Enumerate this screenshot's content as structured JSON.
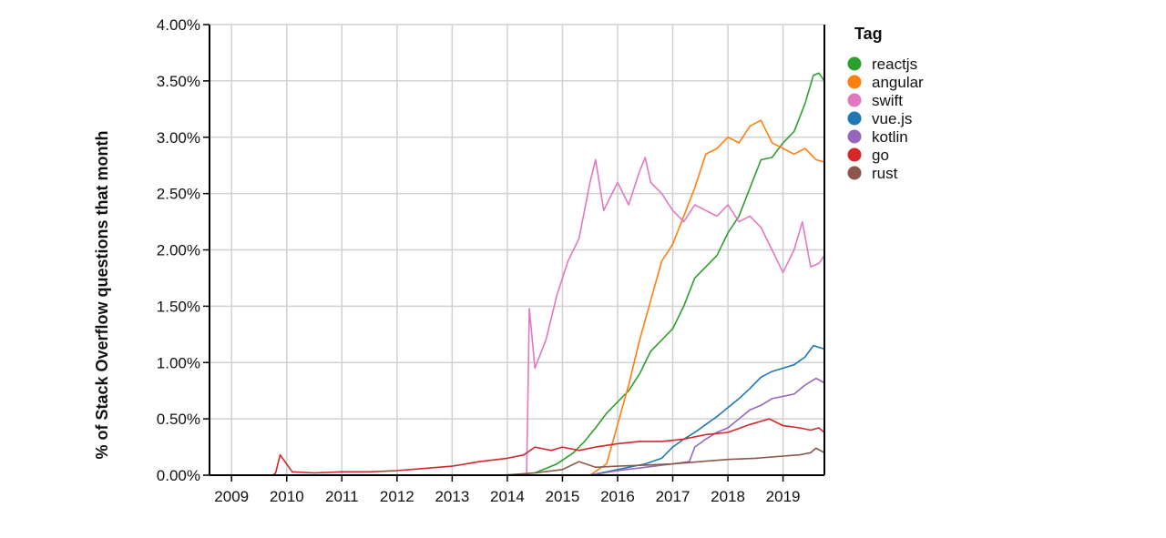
{
  "chart_data": {
    "type": "line",
    "ylabel": "% of Stack Overflow questions that month",
    "legend_title": "Tag",
    "legend_position": "top-right",
    "grid": true,
    "xlim": [
      2008.6,
      2019.75
    ],
    "ylim": [
      0,
      4.0
    ],
    "x_ticks": [
      2009,
      2010,
      2011,
      2012,
      2013,
      2014,
      2015,
      2016,
      2017,
      2018,
      2019
    ],
    "x_tick_labels": [
      "2009",
      "2010",
      "2011",
      "2012",
      "2013",
      "2014",
      "2015",
      "2016",
      "2017",
      "2018",
      "2019"
    ],
    "y_ticks": [
      0,
      0.5,
      1.0,
      1.5,
      2.0,
      2.5,
      3.0,
      3.5,
      4.0
    ],
    "y_tick_labels": [
      "0.00%",
      "0.50%",
      "1.00%",
      "1.50%",
      "2.00%",
      "2.50%",
      "3.00%",
      "3.50%",
      "4.00%"
    ],
    "series": [
      {
        "name": "reactjs",
        "color": "#2ca02c",
        "x": [
          2008.6,
          2013.9,
          2014.5,
          2014.9,
          2015.2,
          2015.4,
          2015.6,
          2015.8,
          2016.0,
          2016.2,
          2016.4,
          2016.6,
          2016.8,
          2017.0,
          2017.2,
          2017.4,
          2017.6,
          2017.8,
          2018.0,
          2018.2,
          2018.4,
          2018.6,
          2018.8,
          2019.0,
          2019.2,
          2019.4,
          2019.55,
          2019.65,
          2019.75
        ],
        "y": [
          0,
          0,
          0.02,
          0.1,
          0.2,
          0.3,
          0.42,
          0.55,
          0.65,
          0.75,
          0.9,
          1.1,
          1.2,
          1.3,
          1.5,
          1.75,
          1.85,
          1.95,
          2.15,
          2.3,
          2.55,
          2.8,
          2.82,
          2.95,
          3.05,
          3.3,
          3.55,
          3.57,
          3.5
        ]
      },
      {
        "name": "angular",
        "color": "#ff7f0e",
        "x": [
          2008.6,
          2015.5,
          2015.8,
          2016.0,
          2016.2,
          2016.4,
          2016.6,
          2016.8,
          2017.0,
          2017.2,
          2017.4,
          2017.6,
          2017.8,
          2018.0,
          2018.2,
          2018.4,
          2018.6,
          2018.8,
          2019.0,
          2019.2,
          2019.4,
          2019.6,
          2019.75
        ],
        "y": [
          0,
          0,
          0.1,
          0.45,
          0.8,
          1.2,
          1.55,
          1.9,
          2.05,
          2.3,
          2.55,
          2.85,
          2.9,
          3.0,
          2.95,
          3.1,
          3.15,
          2.95,
          2.9,
          2.85,
          2.9,
          2.8,
          2.78
        ]
      },
      {
        "name": "swift",
        "color": "#e377c2",
        "x": [
          2008.6,
          2014.35,
          2014.4,
          2014.5,
          2014.7,
          2014.9,
          2015.1,
          2015.3,
          2015.5,
          2015.6,
          2015.75,
          2015.9,
          2016.0,
          2016.2,
          2016.4,
          2016.5,
          2016.6,
          2016.8,
          2017.0,
          2017.2,
          2017.4,
          2017.6,
          2017.8,
          2018.0,
          2018.2,
          2018.4,
          2018.6,
          2018.8,
          2019.0,
          2019.2,
          2019.35,
          2019.5,
          2019.65,
          2019.75
        ],
        "y": [
          0,
          0,
          1.48,
          0.95,
          1.2,
          1.6,
          1.9,
          2.1,
          2.6,
          2.8,
          2.35,
          2.5,
          2.6,
          2.4,
          2.7,
          2.82,
          2.6,
          2.5,
          2.35,
          2.25,
          2.4,
          2.35,
          2.3,
          2.4,
          2.25,
          2.3,
          2.2,
          2.0,
          1.8,
          2.0,
          2.25,
          1.85,
          1.88,
          1.95
        ]
      },
      {
        "name": "vue.js",
        "color": "#1f77b4",
        "x": [
          2008.6,
          2015.5,
          2016.0,
          2016.5,
          2016.8,
          2017.0,
          2017.2,
          2017.4,
          2017.6,
          2017.8,
          2018.0,
          2018.2,
          2018.4,
          2018.6,
          2018.8,
          2019.0,
          2019.2,
          2019.4,
          2019.55,
          2019.75
        ],
        "y": [
          0,
          0,
          0.05,
          0.1,
          0.15,
          0.25,
          0.32,
          0.38,
          0.45,
          0.52,
          0.6,
          0.68,
          0.77,
          0.87,
          0.92,
          0.95,
          0.98,
          1.05,
          1.15,
          1.12
        ]
      },
      {
        "name": "kotlin",
        "color": "#9467bd",
        "x": [
          2008.6,
          2015.5,
          2016.0,
          2016.5,
          2017.0,
          2017.3,
          2017.4,
          2017.6,
          2017.8,
          2018.0,
          2018.2,
          2018.4,
          2018.6,
          2018.8,
          2019.0,
          2019.2,
          2019.4,
          2019.6,
          2019.75
        ],
        "y": [
          0,
          0,
          0.04,
          0.07,
          0.1,
          0.12,
          0.25,
          0.32,
          0.38,
          0.42,
          0.5,
          0.58,
          0.62,
          0.68,
          0.7,
          0.72,
          0.8,
          0.86,
          0.82
        ]
      },
      {
        "name": "go",
        "color": "#d62728",
        "x": [
          2008.6,
          2009.75,
          2009.8,
          2009.88,
          2010.1,
          2010.5,
          2011.0,
          2011.5,
          2012.0,
          2012.5,
          2013.0,
          2013.5,
          2014.0,
          2014.3,
          2014.5,
          2014.8,
          2015.0,
          2015.3,
          2015.6,
          2016.0,
          2016.4,
          2016.8,
          2017.2,
          2017.6,
          2018.0,
          2018.4,
          2018.75,
          2019.0,
          2019.3,
          2019.5,
          2019.65,
          2019.75
        ],
        "y": [
          0,
          0,
          0.02,
          0.18,
          0.03,
          0.02,
          0.03,
          0.03,
          0.04,
          0.06,
          0.08,
          0.12,
          0.15,
          0.18,
          0.25,
          0.22,
          0.25,
          0.22,
          0.25,
          0.28,
          0.3,
          0.3,
          0.32,
          0.36,
          0.38,
          0.45,
          0.5,
          0.44,
          0.42,
          0.4,
          0.42,
          0.38
        ]
      },
      {
        "name": "rust",
        "color": "#8c564b",
        "x": [
          2008.6,
          2014.0,
          2014.5,
          2015.0,
          2015.3,
          2015.6,
          2016.0,
          2016.5,
          2017.0,
          2017.5,
          2018.0,
          2018.5,
          2019.0,
          2019.3,
          2019.5,
          2019.6,
          2019.75
        ],
        "y": [
          0,
          0,
          0.02,
          0.05,
          0.12,
          0.07,
          0.08,
          0.09,
          0.1,
          0.12,
          0.14,
          0.15,
          0.17,
          0.18,
          0.2,
          0.24,
          0.2
        ]
      }
    ]
  }
}
